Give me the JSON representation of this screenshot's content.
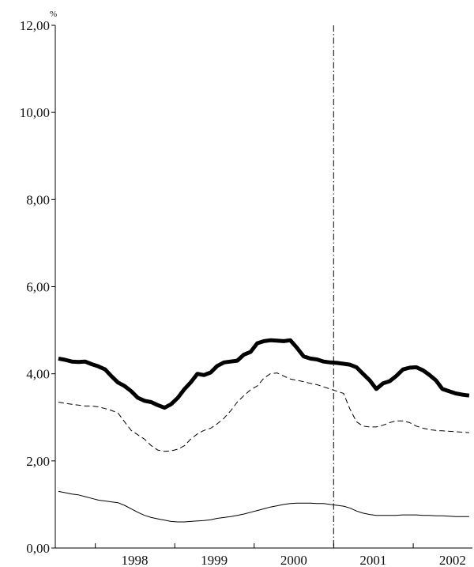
{
  "chart_data": {
    "type": "line",
    "title": "",
    "xlabel": "",
    "ylabel": "",
    "unit": "%",
    "ylim": [
      0,
      12
    ],
    "xlim": [
      "1997-07-01",
      "2002-09-30"
    ],
    "y_ticks": [
      "0,00",
      "2,00",
      "4,00",
      "6,00",
      "8,00",
      "10,00",
      "12,00"
    ],
    "x_ticks": [
      "1998",
      "1999",
      "2000",
      "2001",
      "2002"
    ],
    "grid": false,
    "legend": "none",
    "vertical_marker": "2000-12-31",
    "x": [
      "1997-07",
      "1997-08",
      "1997-09",
      "1997-10",
      "1997-11",
      "1997-12",
      "1998-01",
      "1998-02",
      "1998-03",
      "1998-04",
      "1998-05",
      "1998-06",
      "1998-07",
      "1998-08",
      "1998-09",
      "1998-10",
      "1998-11",
      "1998-12",
      "1999-01",
      "1999-02",
      "1999-03",
      "1999-04",
      "1999-05",
      "1999-06",
      "1999-07",
      "1999-08",
      "1999-09",
      "1999-10",
      "1999-11",
      "1999-12",
      "2000-01",
      "2000-02",
      "2000-03",
      "2000-04",
      "2000-05",
      "2000-06",
      "2000-07",
      "2000-08",
      "2000-09",
      "2000-10",
      "2000-11",
      "2000-12",
      "2001-01",
      "2001-02",
      "2001-03",
      "2001-04",
      "2001-05",
      "2001-06",
      "2001-07",
      "2001-08",
      "2001-09",
      "2001-10",
      "2001-11",
      "2001-12",
      "2002-01",
      "2002-02",
      "2002-03",
      "2002-04",
      "2002-05",
      "2002-06",
      "2002-07",
      "2002-08",
      "2002-09"
    ],
    "series": [
      {
        "style": "thick-solid",
        "color": "#000000",
        "values": [
          4.35,
          4.32,
          4.28,
          4.27,
          4.28,
          4.22,
          4.17,
          4.1,
          3.95,
          3.8,
          3.72,
          3.6,
          3.45,
          3.38,
          3.35,
          3.28,
          3.22,
          3.3,
          3.45,
          3.65,
          3.8,
          4.0,
          3.97,
          4.03,
          4.18,
          4.26,
          4.28,
          4.3,
          4.44,
          4.5,
          4.7,
          4.75,
          4.77,
          4.76,
          4.75,
          4.77,
          4.6,
          4.4,
          4.35,
          4.33,
          4.28,
          4.26,
          4.25,
          4.23,
          4.21,
          4.15,
          4.0,
          3.85,
          3.65,
          3.78,
          3.83,
          3.95,
          4.1,
          4.14,
          4.15,
          4.08,
          3.98,
          3.85,
          3.65,
          3.6,
          3.55,
          3.52,
          3.5
        ]
      },
      {
        "style": "dashed",
        "color": "#000000",
        "values": [
          3.35,
          3.32,
          3.3,
          3.28,
          3.26,
          3.26,
          3.24,
          3.2,
          3.16,
          3.1,
          2.9,
          2.7,
          2.6,
          2.5,
          2.35,
          2.25,
          2.22,
          2.23,
          2.27,
          2.35,
          2.5,
          2.62,
          2.7,
          2.75,
          2.85,
          2.98,
          3.15,
          3.35,
          3.5,
          3.63,
          3.72,
          3.9,
          4.0,
          4.02,
          3.95,
          3.88,
          3.85,
          3.82,
          3.78,
          3.75,
          3.7,
          3.65,
          3.6,
          3.55,
          3.2,
          2.9,
          2.8,
          2.78,
          2.78,
          2.82,
          2.88,
          2.92,
          2.92,
          2.88,
          2.8,
          2.75,
          2.72,
          2.7,
          2.69,
          2.68,
          2.67,
          2.66,
          2.65
        ]
      },
      {
        "style": "thin-solid",
        "color": "#000000",
        "values": [
          1.3,
          1.27,
          1.24,
          1.22,
          1.18,
          1.14,
          1.1,
          1.08,
          1.06,
          1.04,
          0.98,
          0.9,
          0.82,
          0.75,
          0.7,
          0.67,
          0.64,
          0.61,
          0.6,
          0.6,
          0.61,
          0.62,
          0.63,
          0.65,
          0.68,
          0.7,
          0.72,
          0.75,
          0.78,
          0.82,
          0.86,
          0.9,
          0.94,
          0.97,
          1.0,
          1.02,
          1.03,
          1.03,
          1.03,
          1.02,
          1.02,
          1.0,
          0.98,
          0.96,
          0.92,
          0.85,
          0.8,
          0.77,
          0.75,
          0.75,
          0.75,
          0.75,
          0.76,
          0.76,
          0.76,
          0.75,
          0.75,
          0.74,
          0.74,
          0.73,
          0.72,
          0.72,
          0.72
        ]
      }
    ]
  }
}
